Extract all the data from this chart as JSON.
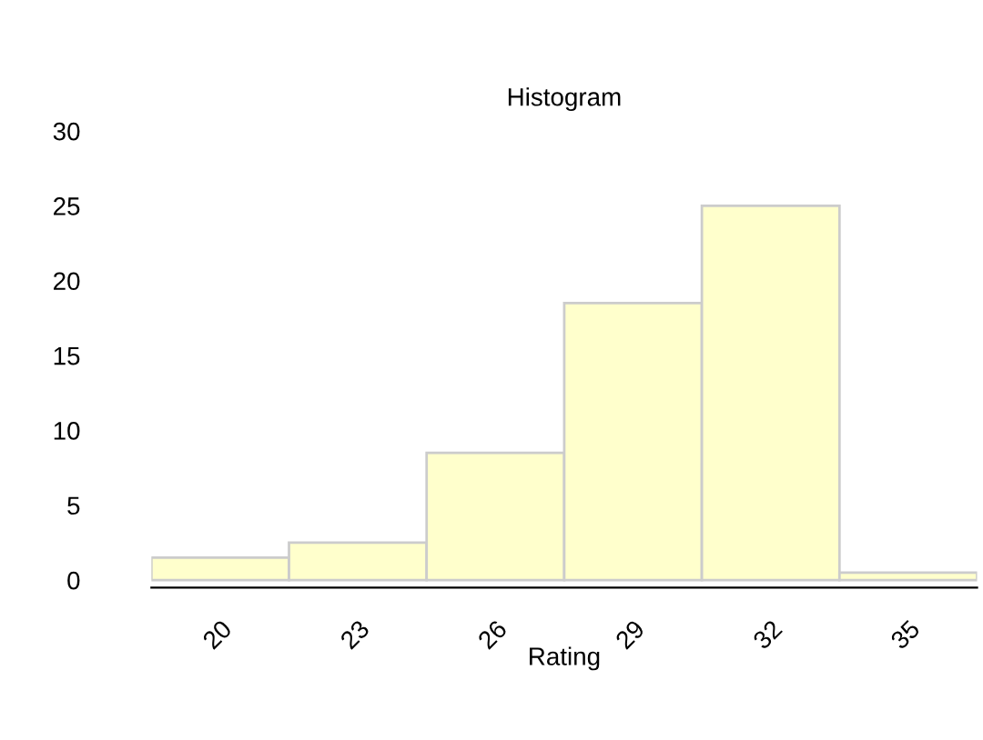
{
  "chart_data": {
    "type": "histogram",
    "title": "Histogram",
    "xlabel": "Rating",
    "bins": [
      18.5,
      21.5,
      24.5,
      27.5,
      30.5,
      33.5,
      36.5
    ],
    "values": [
      1.5,
      2.5,
      8.5,
      18.5,
      25,
      0.5
    ],
    "color": "#ffffcc",
    "xlim": [
      18.5,
      36.5
    ],
    "xticks": [
      20,
      23,
      26,
      29,
      32,
      35
    ],
    "ylim": [
      -0.5,
      30
    ],
    "yticks": [
      0,
      5,
      10,
      15,
      20,
      25,
      30
    ],
    "grid": false
  }
}
